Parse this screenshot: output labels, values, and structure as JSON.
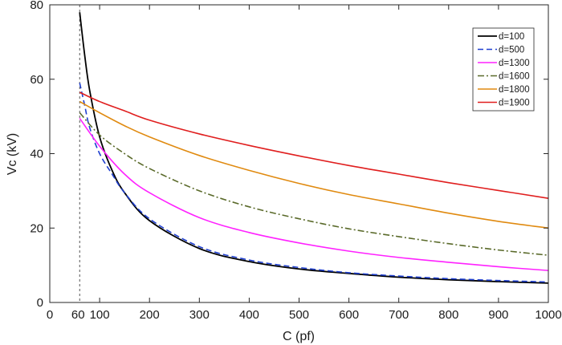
{
  "chart_data": {
    "type": "line",
    "title": "",
    "xlabel": "C (pf)",
    "ylabel": "Vc (kV)",
    "xlim": [
      0,
      1000
    ],
    "ylim": [
      0,
      80
    ],
    "xticks": [
      0,
      100,
      200,
      300,
      400,
      500,
      600,
      700,
      800,
      900,
      1000
    ],
    "yticks": [
      0,
      20,
      40,
      60,
      80
    ],
    "grid": false,
    "legend_position": "top-right",
    "reference_line": {
      "x": 60,
      "label": "60",
      "style": "dotted"
    },
    "series": [
      {
        "name": "d=100",
        "color": "#000000",
        "dash": "solid",
        "width": 1.8,
        "x": [
          60,
          70,
          80,
          100,
          125,
          150,
          200,
          300,
          400,
          500,
          600,
          700,
          800,
          900,
          1000
        ],
        "y": [
          78.0,
          66.5,
          57.0,
          44.5,
          35.5,
          29.5,
          22.0,
          14.5,
          11.0,
          9.0,
          7.8,
          6.8,
          6.1,
          5.6,
          5.2
        ]
      },
      {
        "name": "d=500",
        "color": "#1f3fcf",
        "dash": "dashed",
        "width": 1.6,
        "x": [
          60,
          70,
          80,
          100,
          125,
          150,
          200,
          300,
          400,
          500,
          600,
          700,
          800,
          900,
          1000
        ],
        "y": [
          59.0,
          53.0,
          47.0,
          40.0,
          34.5,
          29.5,
          22.5,
          15.0,
          11.4,
          9.4,
          8.0,
          7.1,
          6.4,
          5.9,
          5.5
        ]
      },
      {
        "name": "d=1300",
        "color": "#ff22ff",
        "dash": "solid",
        "width": 1.6,
        "x": [
          60,
          100,
          150,
          200,
          300,
          400,
          500,
          600,
          700,
          800,
          900,
          1000
        ],
        "y": [
          49.5,
          42.0,
          34.5,
          29.5,
          22.8,
          18.8,
          16.0,
          13.8,
          12.1,
          10.8,
          9.6,
          8.6
        ]
      },
      {
        "name": "d=1600",
        "color": "#5a6a2a",
        "dash": "dashdot",
        "width": 1.6,
        "x": [
          60,
          100,
          150,
          200,
          300,
          400,
          500,
          600,
          700,
          800,
          900,
          1000
        ],
        "y": [
          51.0,
          45.0,
          40.0,
          36.0,
          30.0,
          25.7,
          22.5,
          19.8,
          17.7,
          15.8,
          14.1,
          12.7
        ]
      },
      {
        "name": "d=1800",
        "color": "#e08a10",
        "dash": "solid",
        "width": 1.6,
        "x": [
          60,
          100,
          150,
          200,
          300,
          400,
          500,
          600,
          700,
          800,
          900,
          1000
        ],
        "y": [
          54.0,
          51.0,
          47.5,
          44.5,
          39.5,
          35.5,
          32.0,
          29.0,
          26.5,
          24.0,
          21.8,
          20.0
        ]
      },
      {
        "name": "d=1900",
        "color": "#e01e1e",
        "dash": "solid",
        "width": 1.6,
        "x": [
          60,
          100,
          150,
          200,
          300,
          400,
          500,
          600,
          700,
          800,
          900,
          1000
        ],
        "y": [
          56.5,
          54.0,
          51.5,
          49.0,
          45.3,
          42.2,
          39.4,
          36.8,
          34.5,
          32.2,
          30.1,
          28.0
        ]
      }
    ]
  }
}
